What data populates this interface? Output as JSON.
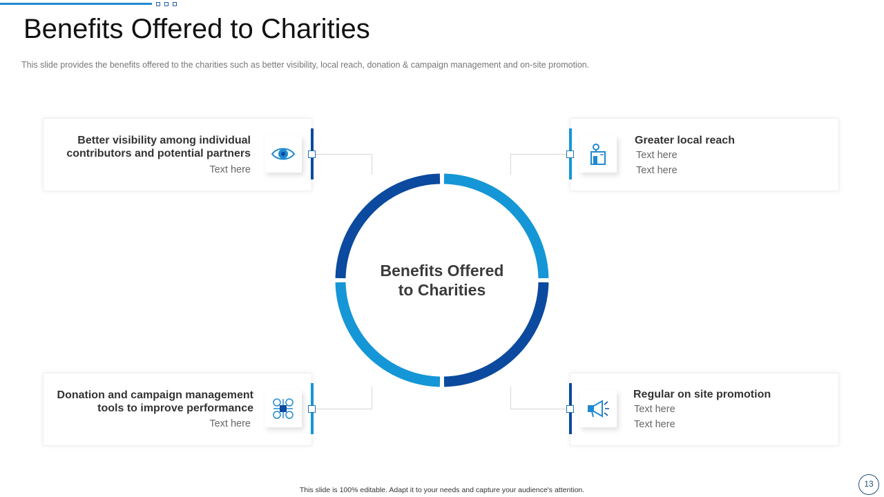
{
  "slide": {
    "title": "Benefits Offered to Charities",
    "subtitle": "This slide provides  the benefits offered to the charities such as better visibility, local reach, donation & campaign management  and on-site promotion.",
    "footer": "This slide is 100% editable.  Adapt it to your needs and capture your audience's attention.",
    "page_number": "13"
  },
  "center": {
    "line1": "Benefits Offered",
    "line2": "to Charities"
  },
  "cards": [
    {
      "head1": "Better visibility  among individual",
      "head2": "contributors and potential partners",
      "text1": "Text here",
      "icon": "eye-icon"
    },
    {
      "head1": "Greater local reach",
      "text1": "Text here",
      "text2": "Text here",
      "icon": "local-store-icon"
    },
    {
      "head1": "Donation and campaign management",
      "head2": "tools to improve performance",
      "text1": "Text here",
      "icon": "donation-management-icon"
    },
    {
      "head1": "Regular on site promotion",
      "text1": "Text here",
      "text2": "Text here",
      "icon": "megaphone-icon"
    }
  ],
  "colors": {
    "dark_blue": "#0b4a9e",
    "light_blue": "#1596d6",
    "accent": "#1f8ad1"
  }
}
